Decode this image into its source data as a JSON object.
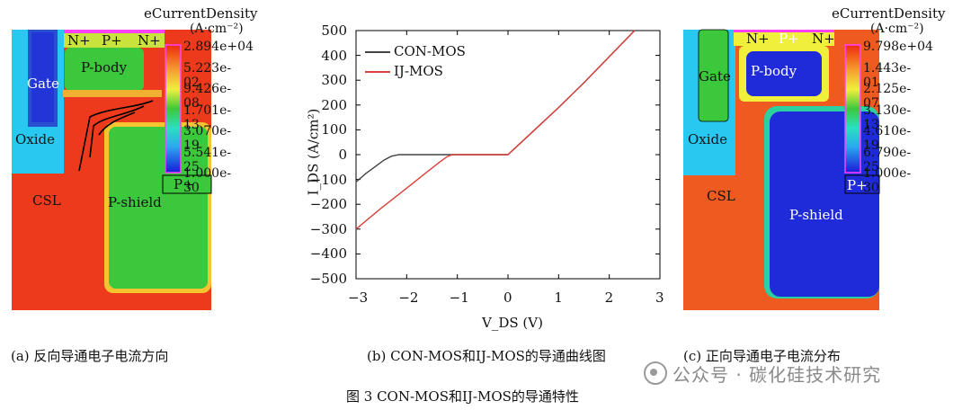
{
  "panel_a": {
    "colorbar_title": "eCurrentDensity",
    "colorbar_unit": "(A·cm⁻²)",
    "colorbar_ticks": [
      "2.894e+04",
      "5.223e-02",
      "9.426e-08",
      "1.701e-13",
      "3.070e-19",
      "5.541e-25",
      "1.000e-30"
    ],
    "regions": {
      "n_plus_left": "N+",
      "p_plus": "P+",
      "n_plus_right": "N+",
      "p_body": "P-body",
      "gate": "Gate",
      "oxide": "Oxide",
      "csl": "CSL",
      "p_shield": "P-shield",
      "p_plus_lower": "P+"
    },
    "caption": "(a) 反向导通电子电流方向"
  },
  "panel_c": {
    "colorbar_title": "eCurrentDensity",
    "colorbar_unit": "(A·cm⁻²)",
    "colorbar_ticks": [
      "9.798e+04",
      "1.443e-01",
      "2.125e-07",
      "3.130e-13",
      "4.610e-19",
      "6.790e-25",
      "1.000e-30"
    ],
    "regions": {
      "n_plus_left": "N+",
      "p_plus": "P+",
      "n_plus_right": "N+",
      "p_body": "P-body",
      "gate": "Gate",
      "oxide": "Oxide",
      "csl": "CSL",
      "p_shield": "P-shield",
      "p_plus_lower": "P+"
    },
    "caption": "(c) 正向导通电子电流分布"
  },
  "chart_data": {
    "type": "line",
    "title": "",
    "xlabel": "V_DS (V)",
    "ylabel": "I_DS (A/cm²)",
    "xlim": [
      -3,
      3
    ],
    "ylim": [
      -500,
      500
    ],
    "x_ticks": [
      "−3",
      "−2",
      "−1",
      "0",
      "1",
      "2",
      "3"
    ],
    "y_ticks": [
      "500",
      "400",
      "300",
      "200",
      "100",
      "0",
      "−100",
      "−200",
      "−300",
      "−400",
      "−500"
    ],
    "series": [
      {
        "name": "CON-MOS",
        "color": "#444444",
        "points": [
          [
            -3,
            -110
          ],
          [
            -2.8,
            -75
          ],
          [
            -2.6,
            -45
          ],
          [
            -2.45,
            -22
          ],
          [
            -2.3,
            -6
          ],
          [
            -2.15,
            0
          ],
          [
            0,
            0
          ],
          [
            0.5,
            95
          ],
          [
            1,
            190
          ],
          [
            1.5,
            290
          ],
          [
            2,
            395
          ],
          [
            2.5,
            500
          ]
        ]
      },
      {
        "name": "IJ-MOS",
        "color": "#d9413b",
        "points": [
          [
            -3,
            -300
          ],
          [
            -2.5,
            -215
          ],
          [
            -2,
            -135
          ],
          [
            -1.6,
            -70
          ],
          [
            -1.35,
            -30
          ],
          [
            -1.2,
            -8
          ],
          [
            -1.1,
            0
          ],
          [
            0,
            0
          ],
          [
            0.5,
            95
          ],
          [
            1,
            190
          ],
          [
            1.5,
            290
          ],
          [
            2,
            395
          ],
          [
            2.5,
            500
          ]
        ]
      }
    ],
    "caption": "(b) CON-MOS和IJ-MOS的导通曲线图"
  },
  "figure_title": "图 3 CON-MOS和IJ-MOS的导通特性",
  "watermark": "公众号 · 碳化硅技术研究",
  "colors": {
    "red": "#ee3a1c",
    "green": "#3cc83c",
    "blue": "#1f2bd8",
    "cyan": "#29c8f0",
    "yellow": "#f0f03c"
  }
}
